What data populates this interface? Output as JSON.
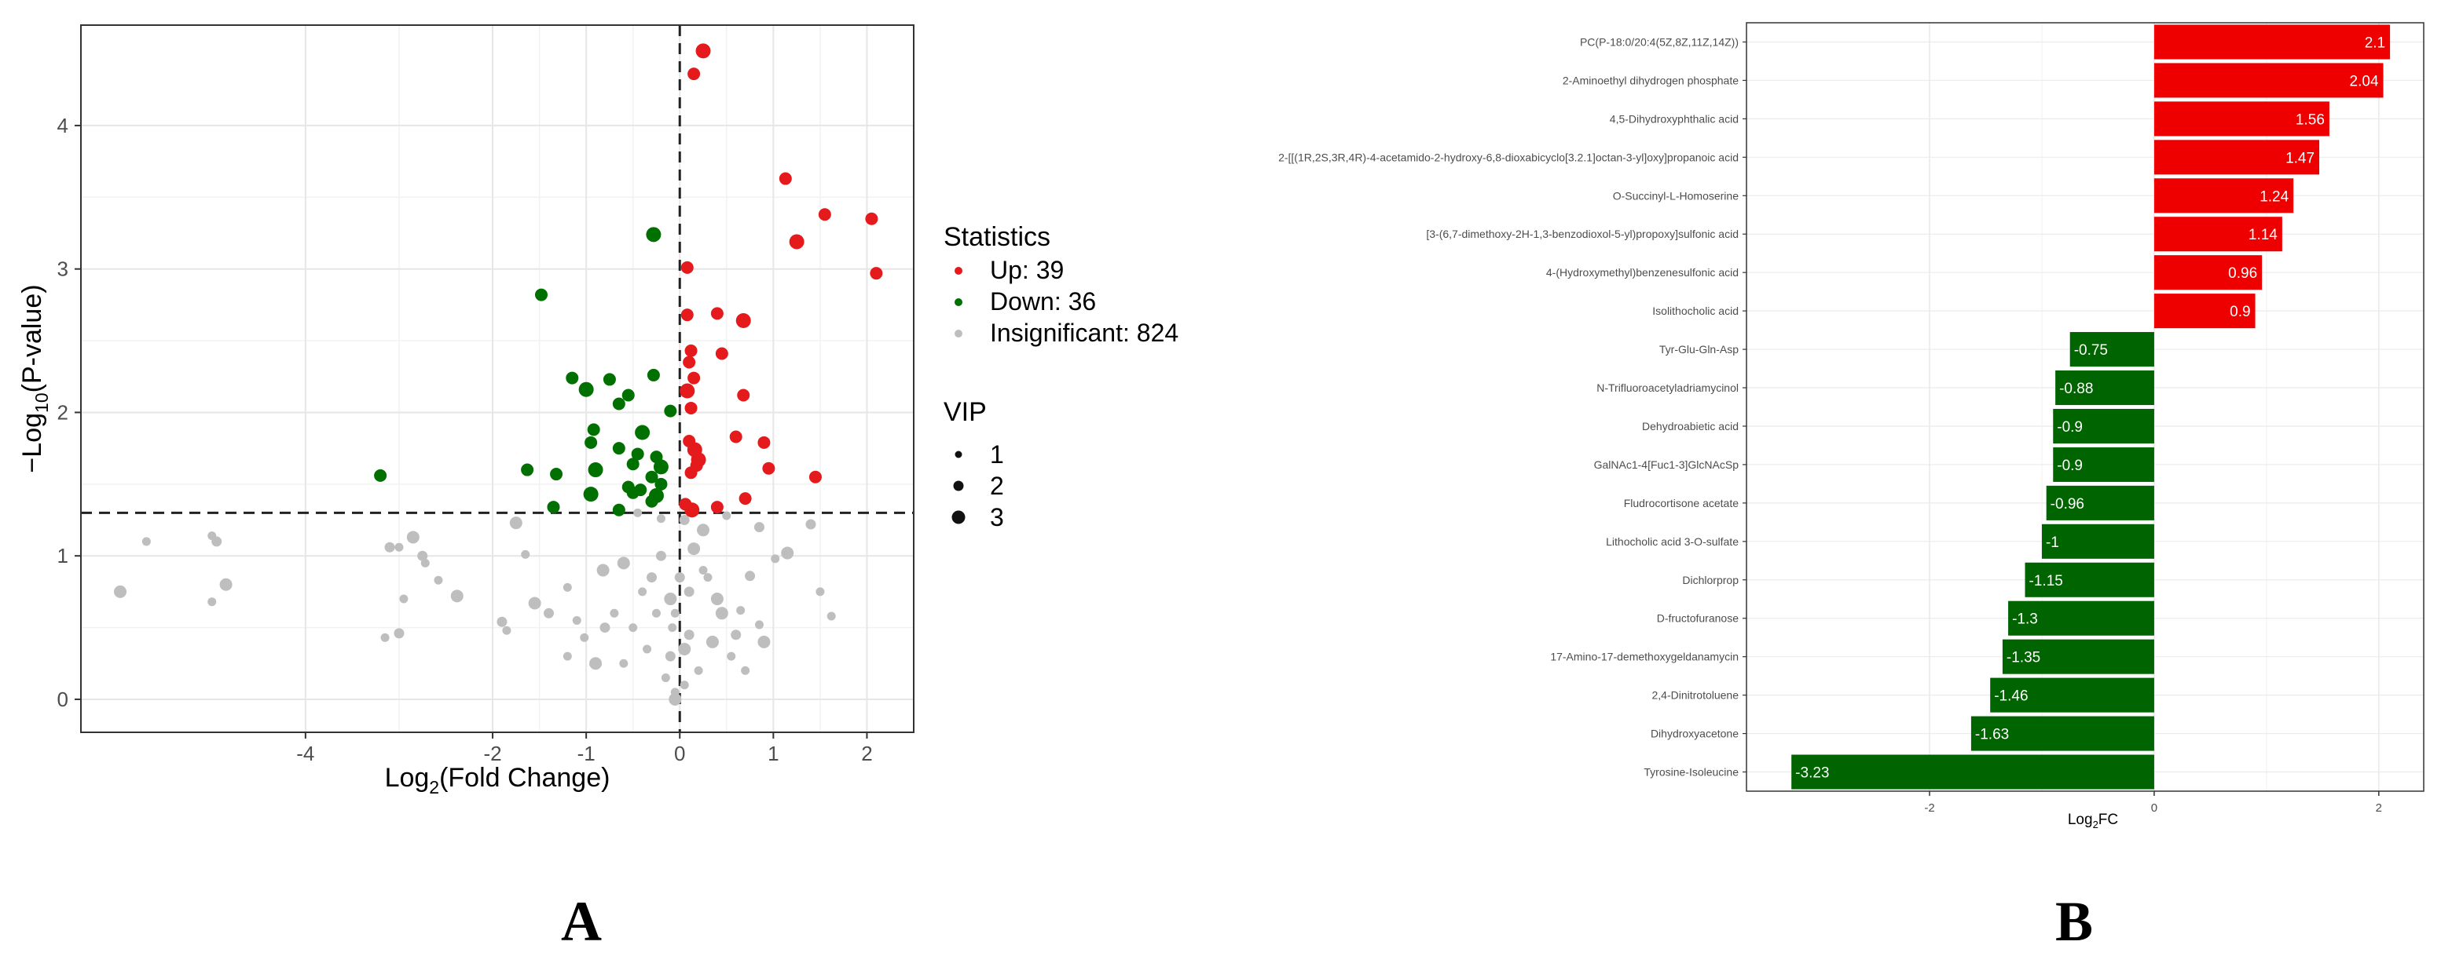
{
  "panel_labels": {
    "a": "A",
    "b": "B"
  },
  "colors": {
    "up": "#e41a1c",
    "down": "#007000",
    "insig": "#bebebe",
    "bar_up": "#ee0000",
    "bar_down": "#006400"
  },
  "chart_data": [
    {
      "type": "scatter",
      "panel": "A",
      "xlabel_pre": "Log",
      "xlabel_sub": "2",
      "xlabel_post": "(Fold Change)",
      "ylabel_pre": "−Log",
      "ylabel_sub": "10",
      "ylabel_post": "(P-value)",
      "xlim": [
        -6.4,
        2.5
      ],
      "ylim": [
        -0.23,
        4.7
      ],
      "xticks": [
        -4,
        -2,
        -1,
        0,
        1,
        2
      ],
      "yticks": [
        0,
        1,
        2,
        3,
        4
      ],
      "thresholds": {
        "x": 0,
        "y": 1.3
      },
      "grid": true,
      "legend": {
        "position": "right",
        "statistics_title": "Statistics",
        "statistics_items": [
          {
            "label": "Up: 39",
            "color": "#e41a1c"
          },
          {
            "label": "Down: 36",
            "color": "#007000"
          },
          {
            "label": "Insignificant: 824",
            "color": "#bebebe"
          }
        ],
        "vip_title": "VIP",
        "vip_items": [
          "1",
          "2",
          "3"
        ]
      },
      "series": [
        {
          "name": "Up",
          "color": "#e41a1c",
          "points": [
            [
              0.25,
              4.52
            ],
            [
              0.15,
              4.36
            ],
            [
              1.13,
              3.63
            ],
            [
              1.55,
              3.38
            ],
            [
              2.05,
              3.35
            ],
            [
              1.25,
              3.19
            ],
            [
              2.1,
              2.97
            ],
            [
              0.08,
              3.01
            ],
            [
              0.4,
              2.69
            ],
            [
              0.08,
              2.68
            ],
            [
              0.68,
              2.64
            ],
            [
              0.45,
              2.41
            ],
            [
              0.12,
              2.43
            ],
            [
              0.1,
              2.35
            ],
            [
              0.15,
              2.24
            ],
            [
              0.08,
              2.15
            ],
            [
              0.68,
              2.12
            ],
            [
              0.12,
              2.03
            ],
            [
              0.6,
              1.83
            ],
            [
              0.1,
              1.8
            ],
            [
              0.16,
              1.74
            ],
            [
              0.9,
              1.79
            ],
            [
              0.18,
              1.63
            ],
            [
              0.12,
              1.58
            ],
            [
              0.95,
              1.61
            ],
            [
              0.2,
              1.67
            ],
            [
              1.45,
              1.55
            ],
            [
              0.7,
              1.4
            ],
            [
              0.06,
              1.36
            ],
            [
              0.4,
              1.34
            ],
            [
              0.13,
              1.32
            ]
          ]
        },
        {
          "name": "Down",
          "color": "#007000",
          "points": [
            [
              -0.28,
              3.24
            ],
            [
              -1.48,
              2.82
            ],
            [
              -1.15,
              2.24
            ],
            [
              -0.75,
              2.23
            ],
            [
              -0.28,
              2.26
            ],
            [
              -1.0,
              2.16
            ],
            [
              -0.55,
              2.12
            ],
            [
              -0.1,
              2.01
            ],
            [
              -0.65,
              2.06
            ],
            [
              -0.92,
              1.88
            ],
            [
              -0.4,
              1.86
            ],
            [
              -0.95,
              1.79
            ],
            [
              -0.65,
              1.75
            ],
            [
              -0.45,
              1.71
            ],
            [
              -0.25,
              1.69
            ],
            [
              -0.2,
              1.62
            ],
            [
              -0.5,
              1.64
            ],
            [
              -1.63,
              1.6
            ],
            [
              -1.32,
              1.57
            ],
            [
              -3.2,
              1.56
            ],
            [
              -0.9,
              1.6
            ],
            [
              -0.3,
              1.55
            ],
            [
              -0.55,
              1.48
            ],
            [
              -0.42,
              1.46
            ],
            [
              -0.2,
              1.5
            ],
            [
              -0.95,
              1.43
            ],
            [
              -0.3,
              1.38
            ],
            [
              -0.5,
              1.44
            ],
            [
              -1.35,
              1.34
            ],
            [
              -0.65,
              1.32
            ],
            [
              -0.25,
              1.42
            ]
          ]
        },
        {
          "name": "Insignificant",
          "color": "#bebebe",
          "points": [
            [
              -5.98,
              0.75
            ],
            [
              -5.7,
              1.1
            ],
            [
              -5.0,
              1.14
            ],
            [
              -4.95,
              1.1
            ],
            [
              -4.85,
              0.8
            ],
            [
              -5.0,
              0.68
            ],
            [
              -3.1,
              1.06
            ],
            [
              -3.0,
              1.06
            ],
            [
              -2.85,
              1.13
            ],
            [
              -2.75,
              1.0
            ],
            [
              -2.72,
              0.95
            ],
            [
              -2.58,
              0.83
            ],
            [
              -2.38,
              0.72
            ],
            [
              -2.95,
              0.7
            ],
            [
              -3.15,
              0.43
            ],
            [
              -3.0,
              0.46
            ],
            [
              -1.75,
              1.23
            ],
            [
              -1.65,
              1.01
            ],
            [
              -1.9,
              0.54
            ],
            [
              -1.85,
              0.48
            ],
            [
              -1.55,
              0.67
            ],
            [
              -1.4,
              0.6
            ],
            [
              -1.2,
              0.78
            ],
            [
              -1.1,
              0.55
            ],
            [
              -0.82,
              0.9
            ],
            [
              -0.45,
              1.3
            ],
            [
              -0.2,
              1.26
            ],
            [
              0.05,
              1.25
            ],
            [
              0.25,
              1.18
            ],
            [
              0.5,
              1.28
            ],
            [
              0.85,
              1.2
            ],
            [
              1.02,
              0.98
            ],
            [
              1.15,
              1.02
            ],
            [
              1.4,
              1.22
            ],
            [
              1.5,
              0.75
            ],
            [
              1.62,
              0.58
            ],
            [
              0.9,
              0.4
            ],
            [
              0.85,
              0.52
            ],
            [
              0.65,
              0.62
            ],
            [
              0.75,
              0.86
            ],
            [
              0.45,
              0.6
            ],
            [
              0.3,
              0.85
            ],
            [
              -0.3,
              0.85
            ],
            [
              -0.5,
              0.5
            ],
            [
              -0.6,
              0.95
            ],
            [
              -0.8,
              0.5
            ],
            [
              -1.02,
              0.43
            ],
            [
              -1.2,
              0.3
            ],
            [
              -0.9,
              0.25
            ],
            [
              -0.05,
              0.05
            ],
            [
              -0.15,
              0.15
            ],
            [
              -0.1,
              0.3
            ],
            [
              0.05,
              0.35
            ],
            [
              0.2,
              0.2
            ],
            [
              0.1,
              0.45
            ],
            [
              -0.25,
              0.6
            ],
            [
              -0.1,
              0.7
            ],
            [
              0.1,
              0.75
            ],
            [
              0.25,
              0.9
            ],
            [
              -0.35,
              0.35
            ],
            [
              0.35,
              0.4
            ],
            [
              0.55,
              0.3
            ],
            [
              -0.6,
              0.25
            ],
            [
              -0.2,
              1.0
            ],
            [
              0.15,
              1.05
            ],
            [
              -0.05,
              0.6
            ],
            [
              0.0,
              0.85
            ],
            [
              -0.4,
              0.75
            ],
            [
              0.4,
              0.7
            ],
            [
              0.6,
              0.45
            ],
            [
              0.7,
              0.2
            ],
            [
              -0.7,
              0.6
            ],
            [
              -0.05,
              0.0
            ],
            [
              0.05,
              0.1
            ],
            [
              -0.08,
              0.5
            ]
          ]
        }
      ]
    },
    {
      "type": "bar",
      "panel": "B",
      "orientation": "horizontal",
      "xlabel_pre": "Log",
      "xlabel_sub": "2",
      "xlabel_post": "FC",
      "xlim": [
        -3.63,
        2.4
      ],
      "xticks": [
        -2,
        0,
        2
      ],
      "grid": true,
      "categories": [
        "PC(P-18:0/20:4(5Z,8Z,11Z,14Z))",
        "2-Aminoethyl dihydrogen phosphate",
        "4,5-Dihydroxyphthalic acid",
        "2-[[(1R,2S,3R,4R)-4-acetamido-2-hydroxy-6,8-dioxabicyclo[3.2.1]octan-3-yl]oxy]propanoic acid",
        "O-Succinyl-L-Homoserine",
        "[3-(6,7-dimethoxy-2H-1,3-benzodioxol-5-yl)propoxy]sulfonic acid",
        "4-(Hydroxymethyl)benzenesulfonic acid",
        "Isolithocholic acid",
        "Tyr-Glu-Gln-Asp",
        "N-Trifluoroacetyladriamycinol",
        "Dehydroabietic acid",
        "GalNAc1-4[Fuc1-3]GlcNAcSp",
        "Fludrocortisone acetate",
        "Lithocholic acid 3-O-sulfate",
        "Dichlorprop",
        "D-fructofuranose",
        "17-Amino-17-demethoxygeldanamycin",
        "2,4-Dinitrotoluene",
        "Dihydroxyacetone",
        "Tyrosine-Isoleucine"
      ],
      "values": [
        2.1,
        2.04,
        1.56,
        1.47,
        1.24,
        1.14,
        0.96,
        0.9,
        -0.75,
        -0.88,
        -0.9,
        -0.9,
        -0.96,
        -1,
        -1.15,
        -1.3,
        -1.35,
        -1.46,
        -1.63,
        -3.23
      ],
      "value_labels": [
        "2.1",
        "2.04",
        "1.56",
        "1.47",
        "1.24",
        "1.14",
        "0.96",
        "0.9",
        "-0.75",
        "-0.88",
        "-0.9",
        "-0.9",
        "-0.96",
        "-1",
        "-1.15",
        "-1.3",
        "-1.35",
        "-1.46",
        "-1.63",
        "-3.23"
      ]
    }
  ]
}
